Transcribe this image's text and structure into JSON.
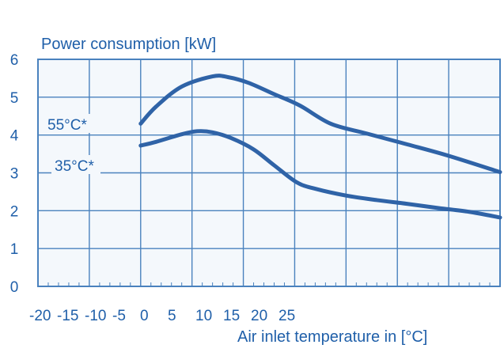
{
  "colors": {
    "background": "#ffffff",
    "plot_area": "#f4f8fc",
    "grid": "#4a82be",
    "series_line": "#2f63a7",
    "text": "#1f5fa9"
  },
  "chart_data": {
    "type": "line",
    "title": "Power consumption [kW]",
    "xlabel": "Air inlet temperature in [°C]",
    "ylabel": "",
    "xlim": [
      -20,
      25
    ],
    "ylim": [
      0,
      6
    ],
    "x_ticks": [
      "-20",
      "-15",
      "-10",
      "-5",
      "0",
      "5",
      "10",
      "15",
      "20",
      "25"
    ],
    "y_ticks": [
      "0",
      "1",
      "2",
      "3",
      "4",
      "5",
      "6"
    ],
    "grid": true,
    "series": [
      {
        "name": "55°C*",
        "points": [
          [
            -10,
            4.3
          ],
          [
            -8.5,
            4.75
          ],
          [
            -6,
            5.28
          ],
          [
            -3,
            5.55
          ],
          [
            -1.5,
            5.53
          ],
          [
            0.5,
            5.38
          ],
          [
            3,
            5.08
          ],
          [
            5.5,
            4.78
          ],
          [
            8.5,
            4.3
          ],
          [
            12,
            4.04
          ],
          [
            16,
            3.75
          ],
          [
            20,
            3.45
          ],
          [
            25,
            3.02
          ]
        ]
      },
      {
        "name": "35°C*",
        "points": [
          [
            -10,
            3.72
          ],
          [
            -8.5,
            3.82
          ],
          [
            -6,
            4.02
          ],
          [
            -4.5,
            4.1
          ],
          [
            -3,
            4.07
          ],
          [
            -1.2,
            3.92
          ],
          [
            1,
            3.62
          ],
          [
            3,
            3.2
          ],
          [
            5.2,
            2.75
          ],
          [
            7,
            2.58
          ],
          [
            10,
            2.4
          ],
          [
            13,
            2.28
          ],
          [
            16,
            2.18
          ],
          [
            19,
            2.07
          ],
          [
            22,
            1.97
          ],
          [
            25,
            1.82
          ]
        ]
      }
    ]
  }
}
